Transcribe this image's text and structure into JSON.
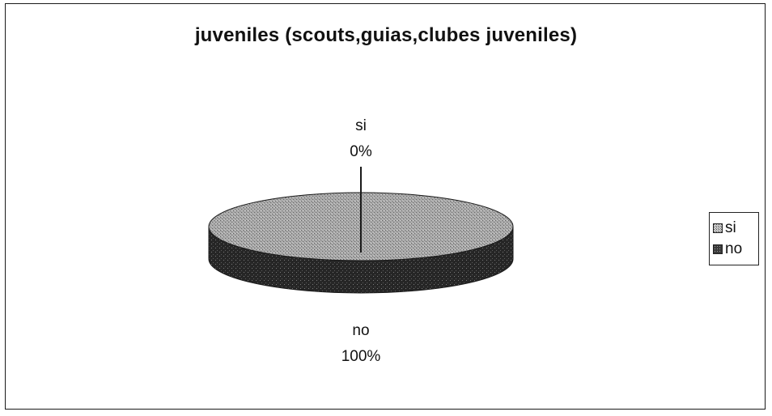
{
  "chart_data": {
    "type": "pie",
    "title": "juveniles (scouts,guias,clubes juveniles)",
    "categories": [
      "si",
      "no"
    ],
    "values": [
      0,
      100
    ],
    "slice_labels": [
      {
        "category": "si",
        "percent": "0%"
      },
      {
        "category": "no",
        "percent": "100%"
      }
    ],
    "legend": {
      "position": "right",
      "entries": [
        "si",
        "no"
      ]
    },
    "colors": {
      "si": "#b5b5b5",
      "no_top": "#9a9a9a",
      "no_side": "#2c2c2c"
    },
    "style": "3d-pie"
  }
}
